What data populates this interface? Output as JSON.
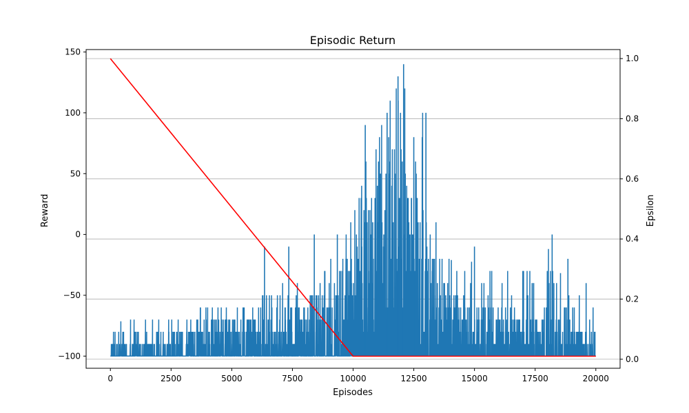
{
  "chart_data": {
    "type": "line",
    "title": "Episodic Return",
    "xlabel": "Episodes",
    "ylabel": "Reward",
    "y2label": "Epsilon",
    "xlim": [
      -1000,
      21000
    ],
    "ylim": [
      -110,
      152
    ],
    "y2lim": [
      -0.03,
      1.03
    ],
    "x_ticks": [
      0,
      2500,
      5000,
      7500,
      10000,
      12500,
      15000,
      17500,
      20000
    ],
    "x_tick_labels": [
      "0",
      "2500",
      "5000",
      "7500",
      "10000",
      "12500",
      "15000",
      "17500",
      "20000"
    ],
    "y_ticks": [
      -100,
      -50,
      0,
      50,
      100,
      150
    ],
    "y_tick_labels": [
      "−100",
      "−50",
      "0",
      "50",
      "100",
      "150"
    ],
    "y2_ticks": [
      0.0,
      0.2,
      0.4,
      0.6,
      0.8,
      1.0
    ],
    "y2_tick_labels": [
      "0.0",
      "0.2",
      "0.4",
      "0.6",
      "0.8",
      "1.0"
    ],
    "grid": "horizontal lines on right (epsilon) axis",
    "series": [
      {
        "axis": "left",
        "color": "#1f77b4",
        "style": "noisy per-episode line",
        "baseline": -100,
        "x": [
          0,
          500,
          1000,
          1500,
          2000,
          2500,
          3000,
          3500,
          4000,
          4500,
          5000,
          5500,
          6000,
          6500,
          7000,
          7500,
          8000,
          8500,
          9000,
          9500,
          10000,
          10500,
          11000,
          11500,
          12000,
          12500,
          13000,
          13500,
          14000,
          14500,
          15000,
          15500,
          16000,
          16500,
          17000,
          17500,
          18000,
          18500,
          19000,
          19500,
          20000
        ],
        "upper_envelope": [
          -80,
          -70,
          -70,
          -70,
          -60,
          -70,
          -60,
          -50,
          -60,
          -60,
          -60,
          -50,
          -50,
          -40,
          -40,
          -40,
          -30,
          -30,
          -20,
          0,
          20,
          60,
          90,
          110,
          140,
          100,
          100,
          20,
          -20,
          -30,
          -20,
          -20,
          -30,
          -30,
          -30,
          -20,
          -10,
          -30,
          -50,
          -40,
          -60
        ],
        "typical_top": [
          -88,
          -85,
          -85,
          -85,
          -82,
          -80,
          -78,
          -75,
          -72,
          -70,
          -70,
          -68,
          -65,
          -60,
          -60,
          -58,
          -55,
          -50,
          -40,
          -30,
          -10,
          20,
          40,
          50,
          60,
          40,
          20,
          -20,
          -40,
          -50,
          -55,
          -60,
          -62,
          -65,
          -65,
          -65,
          -60,
          -70,
          -75,
          -75,
          -80
        ],
        "spikes": [
          {
            "x": 6350,
            "y": -10
          },
          {
            "x": 7350,
            "y": -10
          },
          {
            "x": 8400,
            "y": 0
          },
          {
            "x": 9350,
            "y": 0
          },
          {
            "x": 10500,
            "y": 90
          },
          {
            "x": 11400,
            "y": 100
          },
          {
            "x": 11850,
            "y": 130
          },
          {
            "x": 12080,
            "y": 140
          },
          {
            "x": 12500,
            "y": 80
          },
          {
            "x": 13000,
            "y": 100
          },
          {
            "x": 15000,
            "y": -10
          },
          {
            "x": 18200,
            "y": 0
          },
          {
            "x": 18850,
            "y": -20
          },
          {
            "x": 19600,
            "y": -40
          }
        ]
      },
      {
        "axis": "right",
        "color": "#ff0000",
        "style": "line",
        "x": [
          0,
          10000,
          20000
        ],
        "values": [
          1.0,
          0.01,
          0.01
        ]
      }
    ]
  }
}
